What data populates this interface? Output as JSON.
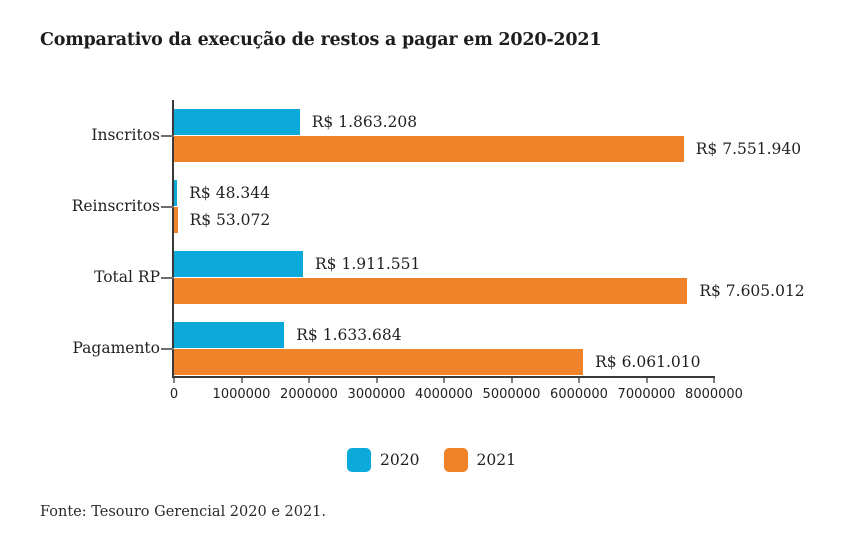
{
  "title": "Comparativo da execução de restos a pagar em 2020-2021",
  "footer": "Fonte: Tesouro Gerencial 2020 e 2021.",
  "colors": {
    "series_2020": "#0ca9db",
    "series_2021": "#f0822a",
    "axis": "#3a3a3a",
    "text": "#231f20"
  },
  "legend": [
    {
      "label": "2020",
      "color": "#0ca9db"
    },
    {
      "label": "2021",
      "color": "#f0822a"
    }
  ],
  "chart_data": {
    "type": "bar",
    "orientation": "horizontal",
    "title": "Comparativo da execução de restos a pagar em 2020-2021",
    "categories": [
      "Inscritos",
      "Reinscritos",
      "Total RP",
      "Pagamento"
    ],
    "series": [
      {
        "name": "2020",
        "color": "#0ca9db",
        "values": [
          1863208,
          48344,
          1911551,
          1633684
        ],
        "labels": [
          "R$ 1.863.208",
          "R$ 48.344",
          "R$ 1.911.551",
          "R$ 1.633.684"
        ]
      },
      {
        "name": "2021",
        "color": "#f0822a",
        "values": [
          7551940,
          53072,
          7605012,
          6061010
        ],
        "labels": [
          "R$ 7.551.940",
          "R$ 53.072",
          "R$ 7.605.012",
          "R$ 6.061.010"
        ]
      }
    ],
    "xlim": [
      0,
      8000000
    ],
    "x_ticks": [
      0,
      1000000,
      2000000,
      3000000,
      4000000,
      5000000,
      6000000,
      7000000,
      8000000
    ],
    "x_tick_labels": [
      "0",
      "1000000",
      "2000000",
      "3000000",
      "4000000",
      "5000000",
      "6000000",
      "7000000",
      "8000000"
    ],
    "grid": false,
    "legend_position": "bottom"
  }
}
